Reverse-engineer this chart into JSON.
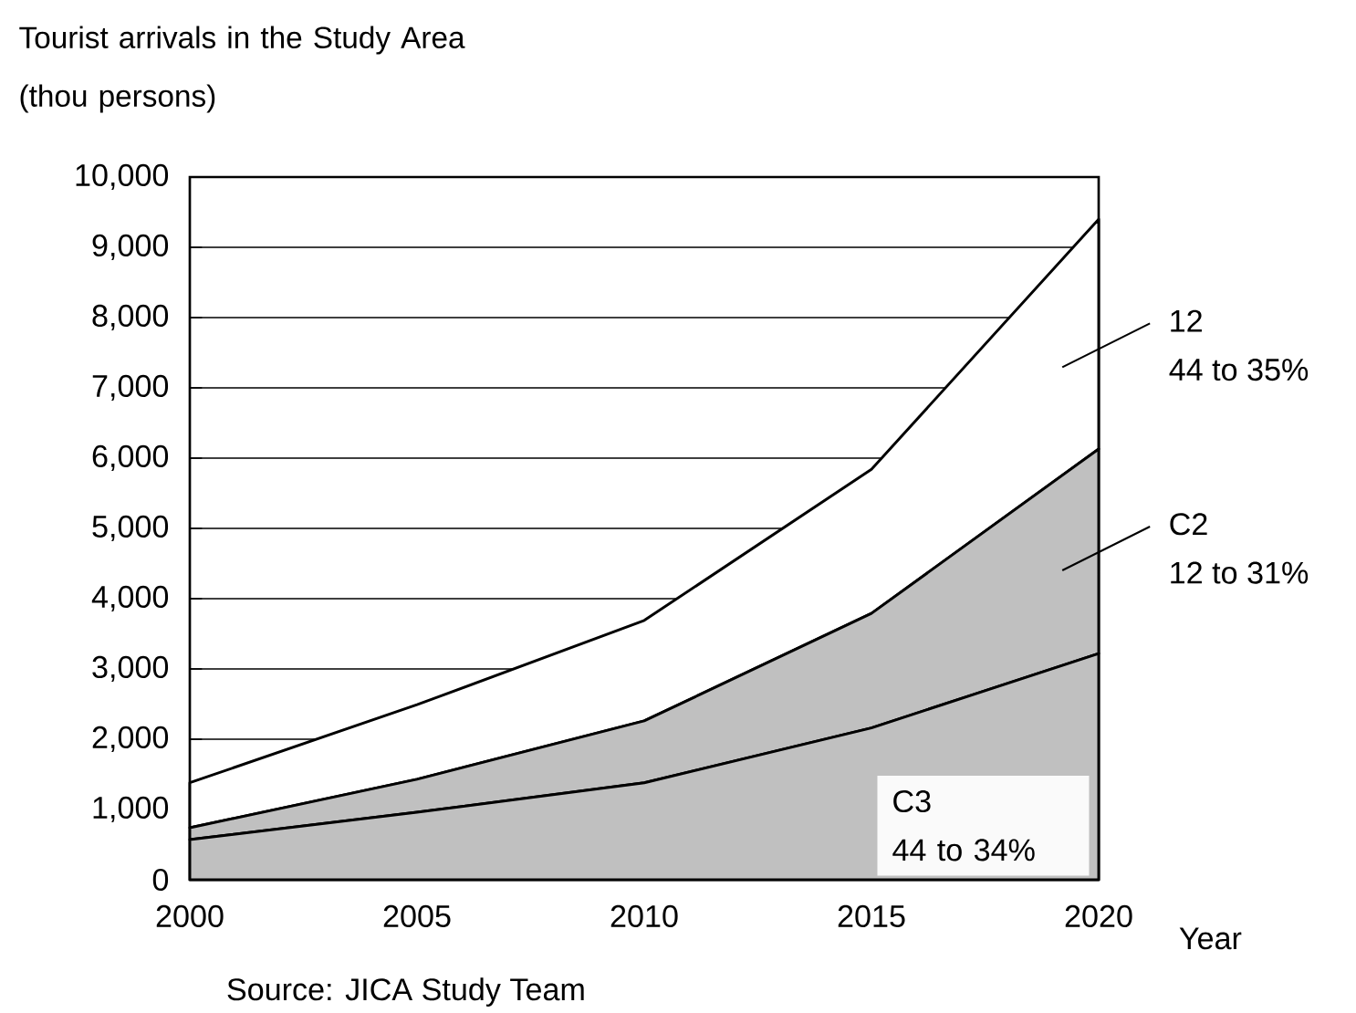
{
  "chart_data": {
    "type": "area",
    "stacked": true,
    "ylabel": "Tourist arrivals in the Study Area (thou persons)",
    "xlabel": "Year",
    "x": [
      2000,
      2005,
      2010,
      2015,
      2020
    ],
    "series": [
      {
        "name": "C3",
        "color": "#c0c0c0",
        "values": [
          570,
          960,
          1380,
          2160,
          3220
        ]
      },
      {
        "name": "C2",
        "color": "#c0c0c0",
        "values": [
          170,
          470,
          880,
          1630,
          2910
        ]
      },
      {
        "name": "12",
        "color": "#ffffff",
        "values": [
          640,
          1060,
          1430,
          2050,
          3270
        ]
      }
    ],
    "annotations": [
      "44 to 34%",
      "12 to 31%",
      "44 to 35%",
      "Source: JICA Study Team"
    ],
    "xlim": [
      2000,
      2020
    ],
    "xticks": [
      2000,
      2005,
      2010,
      2015,
      2020
    ],
    "ylim": [
      0,
      10000
    ],
    "yticks": [
      0,
      {
        "value": 1000,
        "label": "1,000"
      },
      {
        "value": 2000,
        "label": "2,000"
      },
      {
        "value": 3000,
        "label": "3,000"
      },
      {
        "value": 4000,
        "label": "4,000"
      },
      {
        "value": 5000,
        "label": "5,000"
      },
      {
        "value": 6000,
        "label": "6,000"
      },
      {
        "value": 7000,
        "label": "7,000"
      },
      {
        "value": 8000,
        "label": "8,000"
      },
      {
        "value": 9000,
        "label": "9,000"
      },
      {
        "value": 10000,
        "label": "10,000"
      }
    ],
    "grid": "y",
    "line_style": "solid",
    "marker": "none"
  }
}
